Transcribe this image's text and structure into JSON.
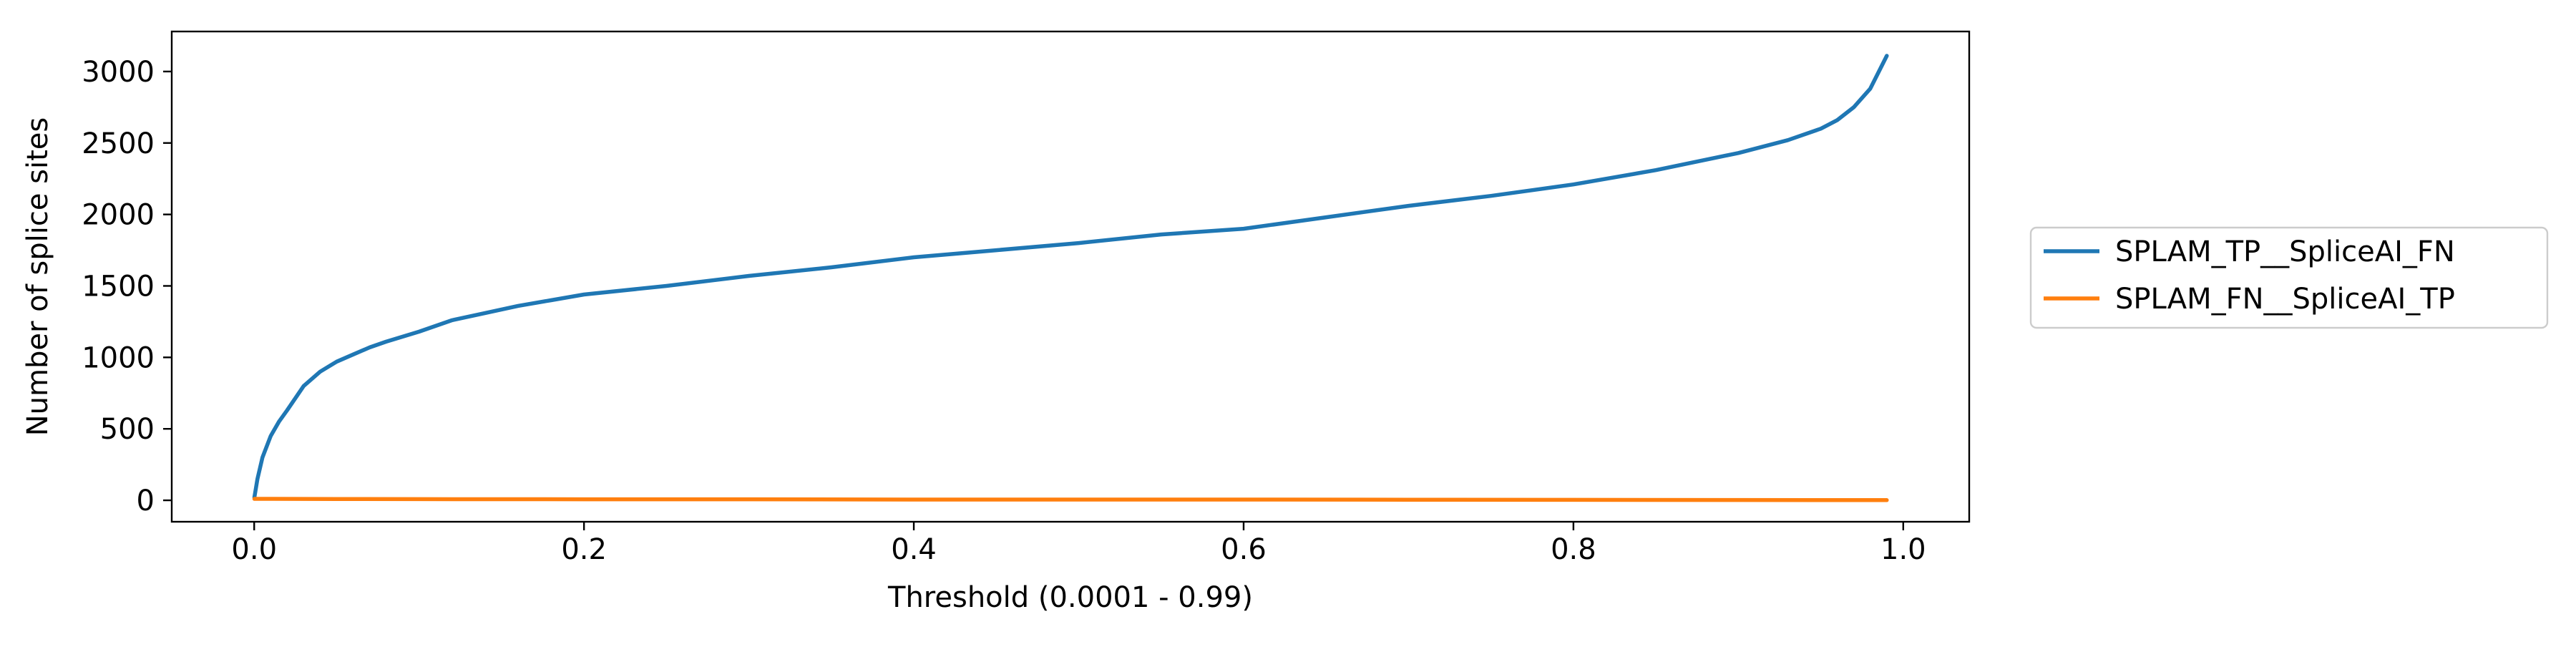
{
  "chart_data": {
    "type": "line",
    "title": "",
    "xlabel": "Threshold (0.0001 - 0.99)",
    "ylabel": "Number of splice sites",
    "xlim": [
      -0.05,
      1.04
    ],
    "ylim": [
      -150,
      3280
    ],
    "xticks": [
      0.0,
      0.2,
      0.4,
      0.6,
      0.8,
      1.0
    ],
    "xtick_labels": [
      "0.0",
      "0.2",
      "0.4",
      "0.6",
      "0.8",
      "1.0"
    ],
    "yticks": [
      0,
      500,
      1000,
      1500,
      2000,
      2500,
      3000
    ],
    "ytick_labels": [
      "0",
      "500",
      "1000",
      "1500",
      "2000",
      "2500",
      "3000"
    ],
    "grid": false,
    "legend_position": "outside-right",
    "series": [
      {
        "name": "SPLAM_TP__SpliceAI_FN",
        "color": "#1f77b4",
        "x": [
          0.0001,
          0.002,
          0.005,
          0.01,
          0.015,
          0.02,
          0.03,
          0.04,
          0.05,
          0.06,
          0.07,
          0.08,
          0.1,
          0.12,
          0.14,
          0.16,
          0.18,
          0.2,
          0.25,
          0.3,
          0.35,
          0.4,
          0.45,
          0.5,
          0.55,
          0.6,
          0.65,
          0.7,
          0.75,
          0.8,
          0.85,
          0.9,
          0.93,
          0.95,
          0.96,
          0.97,
          0.98,
          0.99
        ],
        "y": [
          20,
          150,
          300,
          450,
          550,
          630,
          800,
          900,
          970,
          1020,
          1070,
          1110,
          1180,
          1260,
          1310,
          1360,
          1400,
          1440,
          1500,
          1570,
          1630,
          1700,
          1750,
          1800,
          1860,
          1900,
          1980,
          2060,
          2130,
          2210,
          2310,
          2430,
          2520,
          2600,
          2660,
          2750,
          2880,
          3110
        ]
      },
      {
        "name": "SPLAM_FN__SpliceAI_TP",
        "color": "#ff7f0e",
        "x": [
          0.0001,
          0.05,
          0.1,
          0.2,
          0.3,
          0.4,
          0.5,
          0.6,
          0.7,
          0.8,
          0.9,
          0.99
        ],
        "y": [
          10,
          9,
          8,
          7,
          7,
          5,
          5,
          5,
          4,
          3,
          2,
          1
        ]
      }
    ]
  }
}
